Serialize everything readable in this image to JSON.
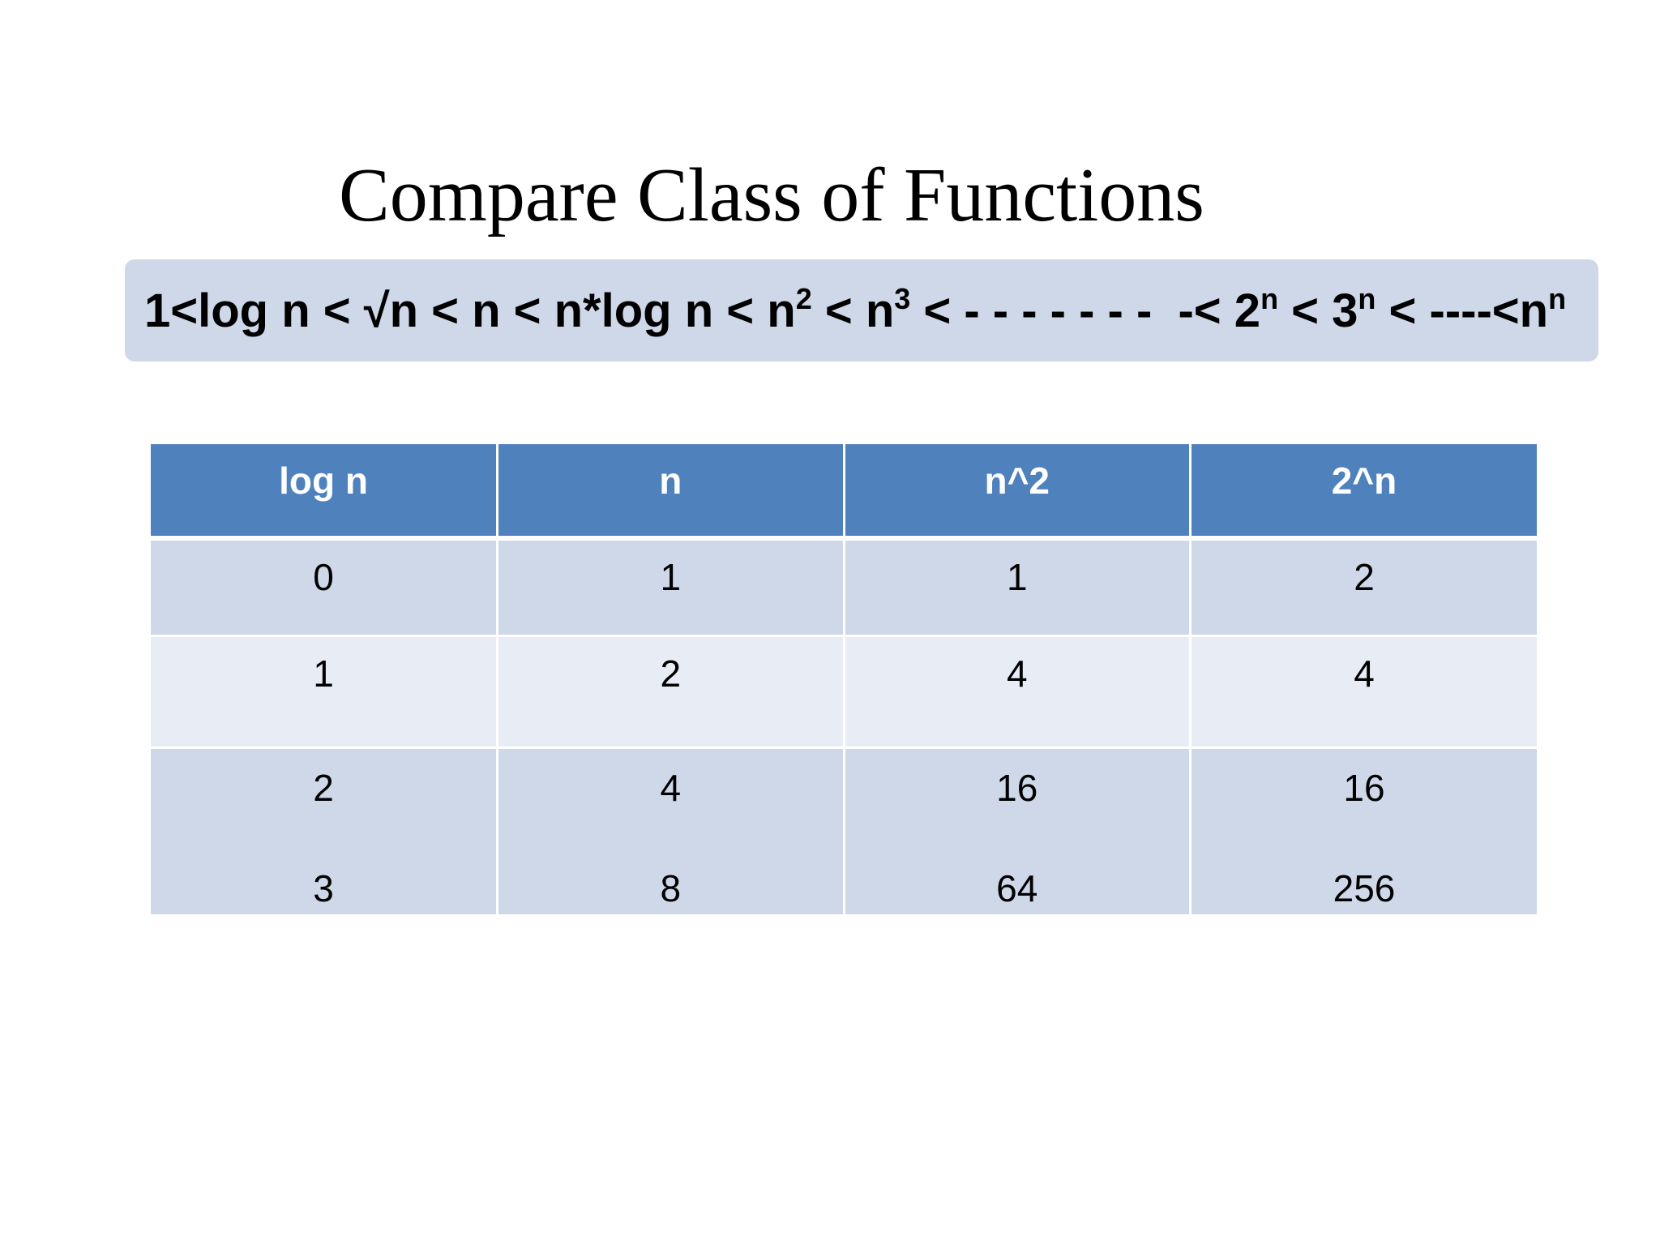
{
  "slide": {
    "title": "Compare Class of Functions",
    "ordering": {
      "segments": [
        {
          "text": "1<log n < √n < n < n*log n < n",
          "sup": "2"
        },
        {
          "text": " < n",
          "sup": "3"
        },
        {
          "text": " < - - - - - - -  -< 2",
          "sup": "n"
        },
        {
          "text": " < 3",
          "sup": "n"
        },
        {
          "text": " < ----<n",
          "sup": "n"
        }
      ]
    },
    "table": {
      "headers": [
        "log n",
        "n",
        "n^2",
        "2^n"
      ],
      "rows": [
        [
          "0",
          "1",
          "1",
          "2"
        ],
        [
          "1",
          "2",
          "4",
          "4"
        ],
        [
          "2",
          "4",
          "16",
          "16"
        ],
        [
          "3",
          "8",
          "64",
          "256"
        ]
      ]
    },
    "colors": {
      "header_bg": "#4f81bd",
      "row_dark": "#cfd8e8",
      "row_light": "#e8ecf4"
    }
  }
}
